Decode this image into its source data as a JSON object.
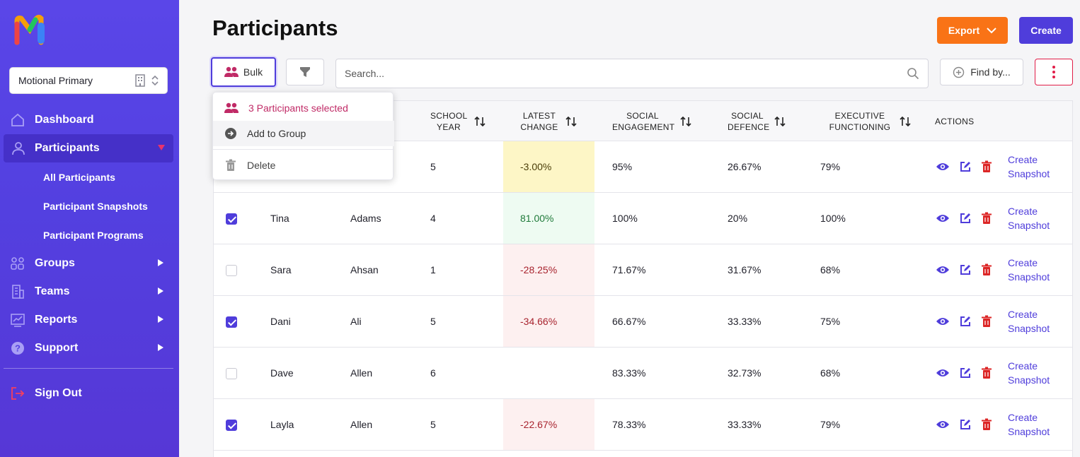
{
  "sidebar": {
    "school": "Motional Primary",
    "logo_text": "motional",
    "nav": {
      "dashboard": "Dashboard",
      "participants": "Participants",
      "sub": [
        "All Participants",
        "Participant Snapshots",
        "Participant Programs"
      ],
      "groups": "Groups",
      "teams": "Teams",
      "reports": "Reports",
      "support": "Support",
      "signout": "Sign Out"
    }
  },
  "header": {
    "title": "Participants",
    "export_label": "Export",
    "create_label": "Create"
  },
  "toolbar": {
    "bulk_label": "Bulk",
    "search_placeholder": "Search...",
    "find_label": "Find by..."
  },
  "bulk_menu": {
    "selected_label": "3 Participants selected",
    "add_label": "Add to Group",
    "delete_label": "Delete"
  },
  "table": {
    "headers": {
      "school_year": "SCHOOL YEAR",
      "latest_change": "LATEST CHANGE",
      "social_engagement": "SOCIAL ENGAGEMENT",
      "social_defence": "SOCIAL DEFENCE",
      "executive_functioning": "EXECUTIVE FUNCTIONING",
      "actions": "ACTIONS"
    },
    "snapshot_label": "Create Snapshot",
    "rows": [
      {
        "checked": false,
        "first": "",
        "last": "",
        "year": "5",
        "change": "-3.00%",
        "change_tone": "warn",
        "engagement": "95%",
        "defence": "26.67%",
        "exec": "79%"
      },
      {
        "checked": true,
        "first": "Tina",
        "last": "Adams",
        "year": "4",
        "change": "81.00%",
        "change_tone": "pos",
        "engagement": "100%",
        "defence": "20%",
        "exec": "100%"
      },
      {
        "checked": false,
        "first": "Sara",
        "last": "Ahsan",
        "year": "1",
        "change": "-28.25%",
        "change_tone": "neg",
        "engagement": "71.67%",
        "defence": "31.67%",
        "exec": "68%"
      },
      {
        "checked": true,
        "first": "Dani",
        "last": "Ali",
        "year": "5",
        "change": "-34.66%",
        "change_tone": "neg",
        "engagement": "66.67%",
        "defence": "33.33%",
        "exec": "75%"
      },
      {
        "checked": false,
        "first": "Dave",
        "last": "Allen",
        "year": "6",
        "change": "",
        "change_tone": "none",
        "engagement": "83.33%",
        "defence": "32.73%",
        "exec": "68%"
      },
      {
        "checked": true,
        "first": "Layla",
        "last": "Allen",
        "year": "5",
        "change": "-22.67%",
        "change_tone": "neg",
        "engagement": "78.33%",
        "defence": "33.33%",
        "exec": "79%"
      }
    ]
  },
  "colors": {
    "accent": "#4f3ddb",
    "export": "#f97316",
    "danger": "#e11d48",
    "sidebar": "#5340e0"
  }
}
